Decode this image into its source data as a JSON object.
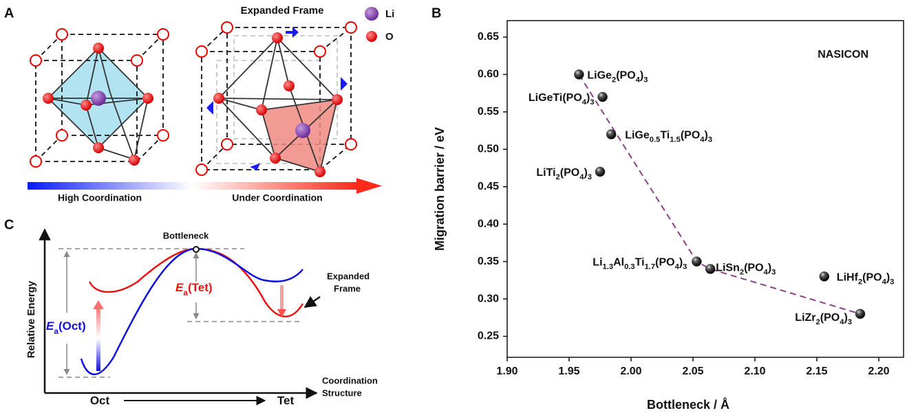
{
  "panels": {
    "a": {
      "label": "A",
      "frame_title": "Expanded Frame",
      "legend_li": "Li",
      "legend_o": "O",
      "left_label": "High Coordination",
      "right_label": "Under Coordination"
    },
    "c": {
      "label": "C",
      "bottleneck": "Bottleneck",
      "ea_tet": "Ea(Tet)",
      "ea_oct": "Ea(Oct)",
      "expanded_1": "Expanded",
      "expanded_2": "Frame",
      "y_label": "Relative Energy",
      "x_label_1": "Coordination",
      "x_label_2": "Structure",
      "oct": "Oct",
      "tet": "Tet"
    }
  },
  "chart_data": {
    "type": "scatter",
    "panel_label": "B",
    "annotation": "NASICON",
    "x_label": "Bottleneck / Å",
    "y_label": "Migration barrier / eV",
    "xlim": [
      1.9,
      2.22
    ],
    "ylim": [
      0.222,
      0.672
    ],
    "xticks": [
      {
        "value": 1.9,
        "label": "1.90"
      },
      {
        "value": 1.95,
        "label": "1.95"
      },
      {
        "value": 2.0,
        "label": "2.00"
      },
      {
        "value": 2.05,
        "label": "2.05"
      },
      {
        "value": 2.1,
        "label": "2.10"
      },
      {
        "value": 2.15,
        "label": "2.15"
      },
      {
        "value": 2.2,
        "label": "2.20"
      }
    ],
    "yticks": [
      {
        "value": 0.25,
        "label": "0.25"
      },
      {
        "value": 0.3,
        "label": "0.30"
      },
      0.35,
      {
        "value": 0.4,
        "label": "0.40"
      },
      0.45,
      {
        "value": 0.5,
        "label": "0.50"
      },
      0.55,
      {
        "value": 0.6,
        "label": "0.60"
      },
      0.65
    ],
    "series": [
      {
        "color": "#222222",
        "labels": [
          "LiGe2(PO4)3",
          "LiGeTi(PO4)3",
          "LiGe0.5Ti1.5(PO4)3",
          "LiTi2(PO4)3",
          "Li1.3Al0.3Ti1.7(PO4)3",
          "LiSn2(PO4)3",
          "LiHf2(PO4)3",
          "LiZr2(PO4)3"
        ],
        "x": [
          1.958,
          1.977,
          1.984,
          1.975,
          2.053,
          2.064,
          2.156,
          2.185
        ],
        "values": [
          0.6,
          0.57,
          0.52,
          0.47,
          0.35,
          0.34,
          0.33,
          0.28
        ]
      }
    ],
    "trend": {
      "color": "#8a3f8a",
      "x": [
        1.958,
        2.053,
        2.064,
        2.185
      ],
      "values": [
        0.6,
        0.35,
        0.34,
        0.28
      ]
    }
  }
}
